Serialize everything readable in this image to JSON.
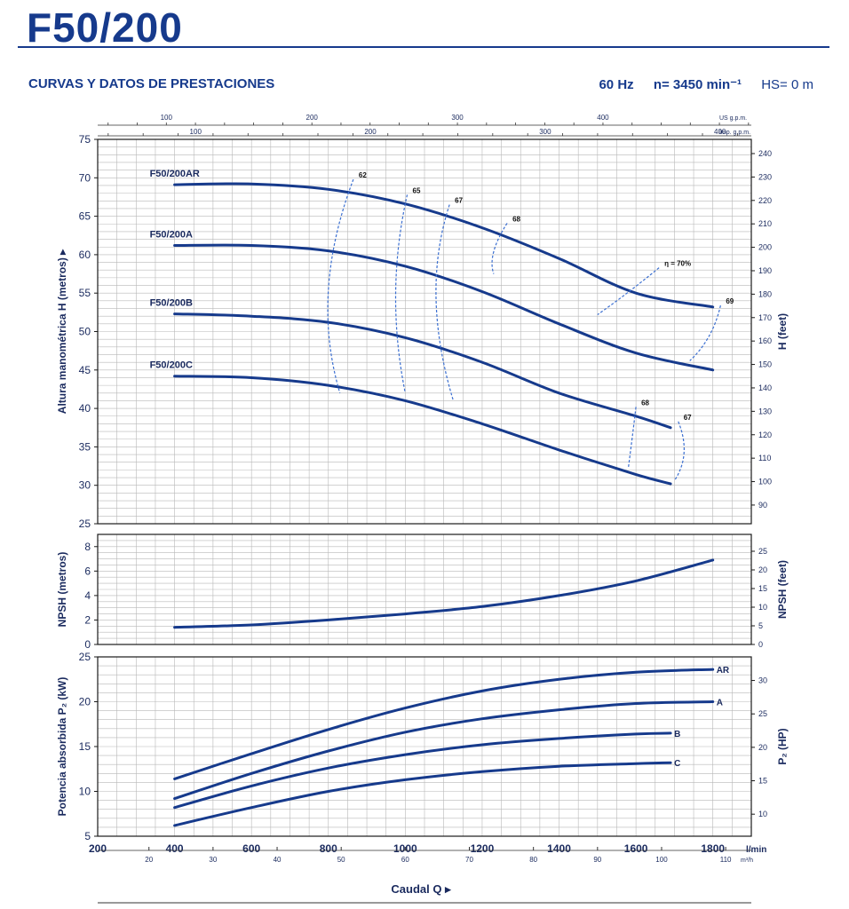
{
  "header": {
    "model": "F50/200",
    "subtitle": "CURVAS Y DATOS DE PRESTACIONES",
    "frequency": "60 Hz",
    "speed": "n= 3450 min⁻¹",
    "hs": "HS= 0 m"
  },
  "chart_data": {
    "type": "line",
    "x_axis": {
      "label": "Caudal Q ▸",
      "unit": "l/min",
      "range": [
        200,
        1900
      ],
      "ticks": [
        200,
        400,
        600,
        800,
        1000,
        1200,
        1400,
        1600,
        1800
      ],
      "secondary_m3h": {
        "unit": "m³/h",
        "ticks": [
          20,
          30,
          40,
          50,
          60,
          70,
          80,
          90,
          100,
          110
        ]
      },
      "top_us_gpm": {
        "unit": "US g.p.m.",
        "ticks": [
          100,
          200,
          300,
          400
        ]
      },
      "top_imp_gpm": {
        "unit": "Imp. g.p.m.",
        "ticks": [
          100,
          200,
          300,
          400
        ]
      }
    },
    "charts": [
      {
        "name": "head",
        "ylabel": "Altura manométrica H  (metros) ▸",
        "ylabel_right": "H (feet)",
        "ylim": [
          25,
          75
        ],
        "yticks": [
          25,
          30,
          35,
          40,
          45,
          50,
          55,
          60,
          65,
          70,
          75
        ],
        "right_ticks_feet": [
          90,
          100,
          110,
          120,
          130,
          140,
          150,
          160,
          170,
          180,
          190,
          200,
          210,
          220,
          230,
          240
        ],
        "series": [
          {
            "name": "F50/200AR",
            "x": [
              400,
              600,
              800,
              1000,
              1200,
              1400,
              1600,
              1800
            ],
            "values": [
              69.1,
              69.2,
              68.5,
              66.6,
              63.5,
              59.5,
              55.0,
              53.2
            ]
          },
          {
            "name": "F50/200A",
            "x": [
              400,
              600,
              800,
              1000,
              1200,
              1400,
              1600,
              1800
            ],
            "values": [
              61.2,
              61.2,
              60.5,
              58.5,
              55.2,
              51.0,
              47.2,
              45.0
            ]
          },
          {
            "name": "F50/200B",
            "x": [
              400,
              600,
              800,
              1000,
              1200,
              1400,
              1600,
              1690
            ],
            "values": [
              52.3,
              52.0,
              51.2,
              49.2,
              46.0,
              42.0,
              39.0,
              37.5
            ]
          },
          {
            "name": "F50/200C",
            "x": [
              400,
              600,
              800,
              1000,
              1200,
              1400,
              1600,
              1690
            ],
            "values": [
              44.2,
              44.0,
              43.0,
              41.0,
              38.0,
              34.6,
              31.4,
              30.2
            ]
          }
        ],
        "efficiency_labels": [
          {
            "label": "62",
            "x": 865,
            "y": 69.8
          },
          {
            "label": "65",
            "x": 1005,
            "y": 67.8
          },
          {
            "label": "67",
            "x": 1115,
            "y": 66.5
          },
          {
            "label": "68",
            "x": 1265,
            "y": 64.1
          },
          {
            "label": "η = 70%",
            "x": 1660,
            "y": 58.3
          },
          {
            "label": "69",
            "x": 1820,
            "y": 53.4
          },
          {
            "label": "68",
            "x": 1600,
            "y": 40.2
          },
          {
            "label": "67",
            "x": 1710,
            "y": 38.3
          }
        ]
      },
      {
        "name": "npsh",
        "ylabel": "NPSH  (metros)",
        "ylabel_right": "NPSH  (feet)",
        "ylim": [
          0,
          9
        ],
        "yticks": [
          0,
          2,
          4,
          6,
          8
        ],
        "right_ticks_feet": [
          0,
          5,
          10,
          15,
          20,
          25
        ],
        "series": [
          {
            "name": "NPSH",
            "x": [
              400,
              600,
              800,
              1000,
              1200,
              1400,
              1600,
              1800
            ],
            "values": [
              1.4,
              1.6,
              2.0,
              2.5,
              3.1,
              4.0,
              5.2,
              6.9
            ]
          }
        ]
      },
      {
        "name": "power",
        "ylabel": "Potencia absorbida P₂  (kW)",
        "ylabel_right": "P₂  (HP)",
        "ylim": [
          5,
          25
        ],
        "yticks": [
          5,
          10,
          15,
          20,
          25
        ],
        "right_ticks_hp": [
          10,
          15,
          20,
          25,
          30
        ],
        "series": [
          {
            "name": "AR",
            "x": [
              400,
              600,
              800,
              1000,
              1200,
              1400,
              1600,
              1800
            ],
            "values": [
              11.4,
              14.2,
              16.9,
              19.3,
              21.2,
              22.5,
              23.3,
              23.6
            ]
          },
          {
            "name": "A",
            "x": [
              400,
              600,
              800,
              1000,
              1200,
              1400,
              1600,
              1800
            ],
            "values": [
              9.2,
              12.0,
              14.5,
              16.6,
              18.1,
              19.1,
              19.8,
              20.0
            ]
          },
          {
            "name": "B",
            "x": [
              400,
              600,
              800,
              1000,
              1200,
              1400,
              1600,
              1690
            ],
            "values": [
              8.2,
              10.6,
              12.6,
              14.1,
              15.2,
              15.9,
              16.4,
              16.5
            ]
          },
          {
            "name": "C",
            "x": [
              400,
              600,
              800,
              1000,
              1200,
              1400,
              1600,
              1690
            ],
            "values": [
              6.2,
              8.2,
              10.0,
              11.3,
              12.2,
              12.8,
              13.1,
              13.2
            ]
          }
        ]
      }
    ],
    "colors": {
      "curve": "#163a8c",
      "grid": "#b8b8b8",
      "text": "#1a2a5e",
      "efficiency": "#3b6fd1"
    }
  }
}
